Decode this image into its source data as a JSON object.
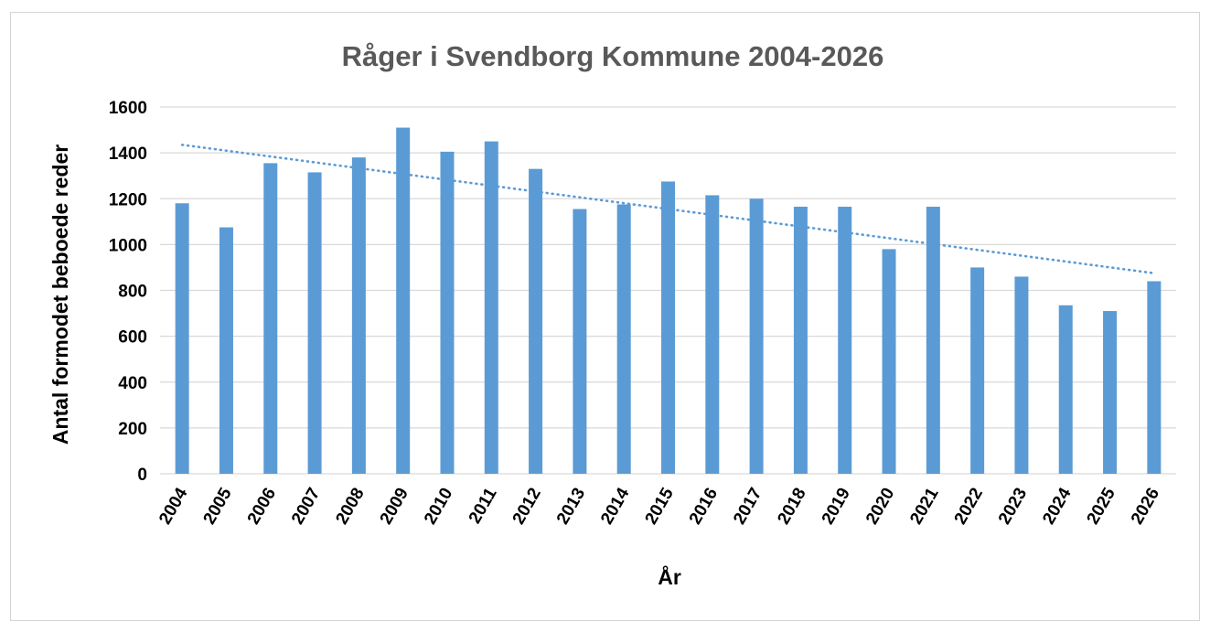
{
  "chart_data": {
    "type": "bar",
    "title": "Råger i Svendborg Kommune  2004-2026",
    "xlabel": "År",
    "ylabel": "Antal formodet beboede reder",
    "categories": [
      "2004",
      "2005",
      "2006",
      "2007",
      "2008",
      "2009",
      "2010",
      "2011",
      "2012",
      "2013",
      "2014",
      "2015",
      "2016",
      "2017",
      "2018",
      "2019",
      "2020",
      "2021",
      "2022",
      "2023",
      "2024",
      "2025",
      "2026"
    ],
    "series": [
      {
        "values": [
          1180,
          1075,
          1355,
          1315,
          1380,
          1510,
          1405,
          1450,
          1330,
          1155,
          1175,
          1275,
          1215,
          1200,
          1165,
          1165,
          980,
          1165,
          900,
          860,
          735,
          710,
          840
        ]
      }
    ],
    "trendline": {
      "type": "linear",
      "style": "dotted",
      "start": 1435,
      "end": 875
    },
    "yticks": [
      0,
      200,
      400,
      600,
      800,
      1000,
      1200,
      1400,
      1600
    ],
    "ylim": [
      0,
      1600
    ],
    "grid": true,
    "legend": "none",
    "colors": {
      "bar": "#5b9bd5",
      "trend": "#5b9bd5",
      "grid": "#d9d9d9",
      "title": "#595959"
    }
  }
}
